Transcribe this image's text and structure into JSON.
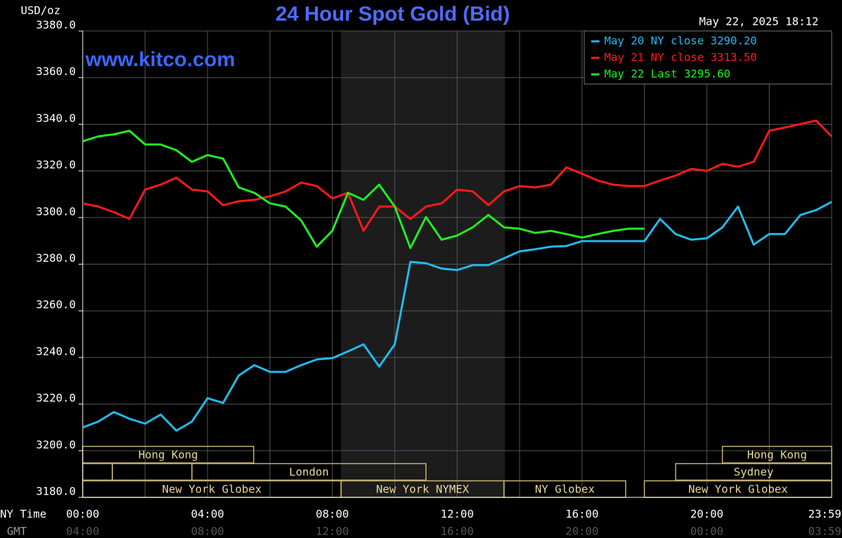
{
  "chart_data": {
    "type": "line",
    "title": "24 Hour Spot Gold (Bid)",
    "y_label": "USD/oz",
    "timestamp": "May 22, 2025 18:12",
    "watermark": "www.kitco.com",
    "x_label": "NY Time",
    "x2_label": "GMT",
    "xlim": [
      0,
      24
    ],
    "ylim": [
      3180,
      3380
    ],
    "yticks": [
      {
        "value": 3180,
        "label": "3180.0"
      },
      {
        "value": 3200,
        "label": "3200.0"
      },
      {
        "value": 3220,
        "label": "3220.0"
      },
      {
        "value": 3240,
        "label": "3240.0"
      },
      {
        "value": 3260,
        "label": "3260.0"
      },
      {
        "value": 3280,
        "label": "3280.0"
      },
      {
        "value": 3300,
        "label": "3300.0"
      },
      {
        "value": 3320,
        "label": "3320.0"
      },
      {
        "value": 3340,
        "label": "3340.0"
      },
      {
        "value": 3360,
        "label": "3360.0"
      },
      {
        "value": 3380,
        "label": "3380.0"
      }
    ],
    "xticks": [
      {
        "value": 0,
        "label": "00:00"
      },
      {
        "value": 4,
        "label": "04:00"
      },
      {
        "value": 8,
        "label": "08:00"
      },
      {
        "value": 12,
        "label": "12:00"
      },
      {
        "value": 16,
        "label": "16:00"
      },
      {
        "value": 20,
        "label": "20:00"
      },
      {
        "value": 23.983,
        "label": "23:59"
      }
    ],
    "x2ticks": [
      {
        "value": 0,
        "label": "04:00"
      },
      {
        "value": 4,
        "label": "08:00"
      },
      {
        "value": 8,
        "label": "12:00"
      },
      {
        "value": 12,
        "label": "16:00"
      },
      {
        "value": 16,
        "label": "20:00"
      },
      {
        "value": 20,
        "label": "00:00"
      },
      {
        "value": 23.983,
        "label": "03:59"
      }
    ],
    "xgrid": [
      0,
      2,
      4,
      6,
      8,
      10,
      12,
      14,
      16,
      18,
      20,
      22,
      24
    ],
    "grid": true,
    "shaded": [
      8.28,
      13.53
    ],
    "sessions": [
      {
        "name": "Hong Kong",
        "start": 0,
        "end": 5.48,
        "row": 0
      },
      {
        "name": "Hong Kong",
        "start": 20.5,
        "end": 24,
        "row": 0
      },
      {
        "name": null,
        "start": 0,
        "end": 0.95,
        "row": 1
      },
      {
        "name": null,
        "start": 0.95,
        "end": 3.5,
        "row": 1
      },
      {
        "name": "London",
        "start": 3.5,
        "end": 11,
        "row": 1
      },
      {
        "name": "Sydney",
        "start": 19,
        "end": 24,
        "row": 1
      },
      {
        "name": "New York Globex",
        "start": 0,
        "end": 8.28,
        "row": 2
      },
      {
        "name": "New York NYMEX",
        "start": 8.28,
        "end": 13.5,
        "row": 2
      },
      {
        "name": "NY Globex",
        "start": 13.5,
        "end": 17.4,
        "row": 2
      },
      {
        "name": "New York Globex",
        "start": 18,
        "end": 24,
        "row": 2
      }
    ],
    "x": [
      0,
      0.5,
      1,
      1.5,
      2,
      2.5,
      3,
      3.5,
      4,
      4.5,
      5,
      5.5,
      6,
      6.5,
      7,
      7.5,
      8,
      8.5,
      9,
      9.5,
      10,
      10.5,
      11,
      11.5,
      12,
      12.5,
      13,
      13.5,
      14,
      14.5,
      15,
      15.5,
      16,
      16.5,
      17,
      17.5,
      18,
      18.5,
      19,
      19.5,
      20,
      20.5,
      21,
      21.5,
      22,
      22.5,
      23,
      23.5,
      24
    ],
    "series": [
      {
        "name": "May 20 NY close 3290.20",
        "color": "#22bbee",
        "values": [
          3210,
          3212.5,
          3216.6,
          3213.7,
          3211.6,
          3215.5,
          3208.6,
          3212.5,
          3222.5,
          3220.5,
          3232.3,
          3236.7,
          3233.8,
          3233.8,
          3236.7,
          3239.1,
          3239.7,
          3242.6,
          3245.6,
          3236.1,
          3245.6,
          3281,
          3280.4,
          3278.1,
          3277.5,
          3279.6,
          3279.6,
          3282.5,
          3285.5,
          3286.4,
          3287.5,
          3287.8,
          3289.9,
          3289.9,
          3289.9,
          3289.9,
          3289.9,
          3299.4,
          3292.9,
          3290.5,
          3291.1,
          3295.8,
          3304.7,
          3288.4,
          3292.9,
          3292.9,
          3301.1,
          3303.2,
          3306.7
        ]
      },
      {
        "name": "May 21 NY close 3313.50",
        "color": "#ff1a1a",
        "values": [
          3306.1,
          3304.7,
          3302.3,
          3299.4,
          3312,
          3314.1,
          3317.1,
          3312,
          3311.2,
          3305.3,
          3307,
          3307.6,
          3309.1,
          3311.2,
          3315,
          3313.5,
          3308.2,
          3310.6,
          3294.3,
          3304.7,
          3304.7,
          3299.4,
          3304.7,
          3306.1,
          3312,
          3311.2,
          3305.3,
          3311.2,
          3313.5,
          3312.9,
          3314.1,
          3321.5,
          3318.8,
          3315.9,
          3314.1,
          3313.5,
          3313.5,
          3315.9,
          3318,
          3320.9,
          3320,
          3323,
          3321.8,
          3323.9,
          3337.2,
          3338.6,
          3340.1,
          3341.6,
          3334.8
        ]
      },
      {
        "name": "May 22 Last 3295.60",
        "color": "#22ee22",
        "values": [
          3332.7,
          3334.8,
          3335.7,
          3337.2,
          3331.3,
          3331.3,
          3328.9,
          3323.9,
          3326.8,
          3325.3,
          3312.9,
          3310.6,
          3306.1,
          3304.7,
          3298.8,
          3287.5,
          3294.3,
          3310.6,
          3307.6,
          3314.1,
          3304.7,
          3286.9,
          3300.2,
          3290.5,
          3292.3,
          3295.8,
          3301.1,
          3295.8,
          3295.2,
          3293.4,
          3294.3,
          3292.9,
          3291.4,
          3292.9,
          3294.3,
          3295.2,
          3295.2,
          null,
          null,
          null,
          null,
          null,
          null,
          null,
          null,
          null,
          null,
          null,
          null
        ]
      }
    ]
  }
}
